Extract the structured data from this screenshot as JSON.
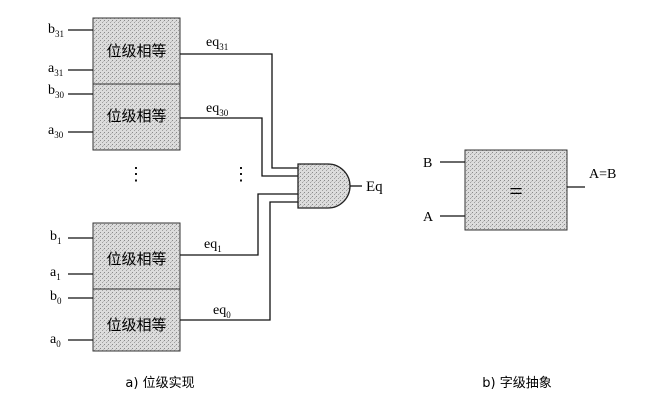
{
  "left_panel": {
    "caption": "a) 位级实现",
    "cell_label": "位级相等",
    "cells": [
      {
        "b": "b",
        "b_sub": "31",
        "a": "a",
        "a_sub": "31",
        "eq": "eq",
        "eq_sub": "31"
      },
      {
        "b": "b",
        "b_sub": "30",
        "a": "a",
        "a_sub": "30",
        "eq": "eq",
        "eq_sub": "30"
      },
      {
        "b": "b",
        "b_sub": "1",
        "a": "a",
        "a_sub": "1",
        "eq": "eq",
        "eq_sub": "1"
      },
      {
        "b": "b",
        "b_sub": "0",
        "a": "a",
        "a_sub": "0",
        "eq": "eq",
        "eq_sub": "0"
      }
    ],
    "ellipsis": "⋮",
    "output_label": "Eq"
  },
  "right_panel": {
    "caption": "b) 字级抽象",
    "input_b": "B",
    "input_a": "A",
    "operator": "=",
    "output_label": "A=B"
  },
  "colors": {
    "line": "#111111",
    "block_fill": "#d9d9d9",
    "block_stroke": "#333333"
  }
}
